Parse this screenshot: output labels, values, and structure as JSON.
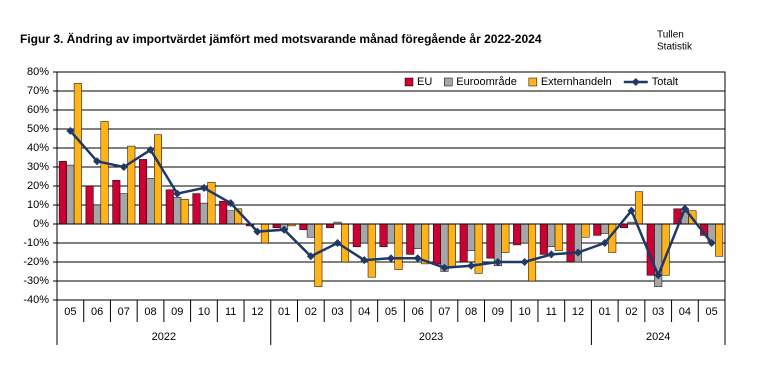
{
  "chart_data": {
    "type": "bar_line",
    "title": "Figur 3. Ändring av importvärdet jämfört med motsvarande månad föregående år 2022-2024",
    "corner_text": [
      "Tullen",
      "Statistik"
    ],
    "categories": [
      "05",
      "06",
      "07",
      "08",
      "09",
      "10",
      "11",
      "12",
      "01",
      "02",
      "03",
      "04",
      "05",
      "06",
      "07",
      "08",
      "09",
      "10",
      "11",
      "12",
      "01",
      "02",
      "03",
      "04",
      "05"
    ],
    "year_labels": [
      "2022",
      null,
      null,
      null,
      null,
      null,
      null,
      null,
      "2023",
      null,
      null,
      null,
      null,
      null,
      null,
      null,
      null,
      null,
      null,
      null,
      "2024",
      null,
      null,
      null,
      null
    ],
    "ylim": [
      -40,
      80
    ],
    "yticks": [
      {
        "value": -40,
        "label": "-40%"
      },
      {
        "value": -30,
        "label": "-30%"
      },
      {
        "value": -20,
        "label": "-20%"
      },
      {
        "value": -10,
        "label": "-10%"
      },
      {
        "value": 0,
        "label": "0%"
      },
      {
        "value": 10,
        "label": "10%"
      },
      {
        "value": 20,
        "label": "20%"
      },
      {
        "value": 30,
        "label": "30%"
      },
      {
        "value": 40,
        "label": "40%"
      },
      {
        "value": 50,
        "label": "50%"
      },
      {
        "value": 60,
        "label": "60%"
      },
      {
        "value": 70,
        "label": "70%"
      },
      {
        "value": 80,
        "label": "80%"
      }
    ],
    "grid": true,
    "legend": "top-right",
    "series": [
      {
        "name": "EU",
        "type": "bar",
        "color": "#cc0033",
        "values": [
          33,
          20,
          23,
          34,
          18,
          16,
          12,
          -1,
          -2,
          -3,
          -2,
          -12,
          -12,
          -16,
          -21,
          -20,
          -18,
          -11,
          -16,
          -20,
          -6,
          -2,
          -27,
          8,
          -6
        ]
      },
      {
        "name": "Euroområde",
        "type": "bar",
        "color": "#a6a6a6",
        "values": [
          31,
          10,
          16,
          24,
          14,
          11,
          7,
          0,
          -3,
          -7,
          1,
          -10,
          -10,
          -13,
          -25,
          -14,
          -22,
          -10,
          -12,
          -20,
          -5,
          1,
          -33,
          8,
          -10
        ]
      },
      {
        "name": "Externhandeln",
        "type": "bar",
        "color": "#ffb31a",
        "values": [
          74,
          54,
          41,
          47,
          13,
          22,
          8,
          -10,
          -1,
          -33,
          -20,
          -28,
          -24,
          -21,
          -23,
          -26,
          -15,
          -30,
          -14,
          -7,
          -15,
          17,
          -27,
          7,
          -17
        ]
      },
      {
        "name": "Totalt",
        "type": "line",
        "color": "#1f3864",
        "values": [
          49,
          33,
          30,
          39,
          16,
          19,
          11,
          -4,
          -3,
          -17,
          -10,
          -19,
          -18,
          -18,
          -23,
          -22,
          -20,
          -20,
          -16,
          -15,
          -10,
          7,
          -27,
          8,
          -10
        ]
      }
    ]
  }
}
